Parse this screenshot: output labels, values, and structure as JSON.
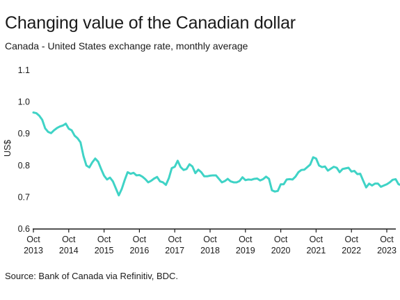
{
  "title": "Changing value of the Canadian dollar",
  "subtitle": "Canada - United States exchange rate, monthly average",
  "source": "Source: Bank of Canada via Refinitiv, BDC.",
  "chart_data": {
    "type": "line",
    "ylabel": "US$",
    "xlabel": "",
    "ylim": [
      0.6,
      1.1
    ],
    "yticks": [
      "0.6",
      "0.7",
      "0.8",
      "0.9",
      "1.0",
      "1.1"
    ],
    "xticks": [
      {
        "month": "Oct",
        "year": "2013"
      },
      {
        "month": "Oct",
        "year": "2014"
      },
      {
        "month": "Oct",
        "year": "2015"
      },
      {
        "month": "Oct",
        "year": "2016"
      },
      {
        "month": "Oct",
        "year": "2017"
      },
      {
        "month": "Oct",
        "year": "2018"
      },
      {
        "month": "Oct",
        "year": "2019"
      },
      {
        "month": "Oct",
        "year": "2020"
      },
      {
        "month": "Oct",
        "year": "2021"
      },
      {
        "month": "Oct",
        "year": "2022"
      },
      {
        "month": "Oct",
        "year": "2023"
      }
    ],
    "grid": false,
    "line_color": "#3fd3c6",
    "series": [
      {
        "values": [
          0.967,
          0.965,
          0.957,
          0.944,
          0.917,
          0.906,
          0.902,
          0.911,
          0.918,
          0.923,
          0.926,
          0.932,
          0.916,
          0.911,
          0.894,
          0.886,
          0.873,
          0.83,
          0.8,
          0.794,
          0.81,
          0.822,
          0.812,
          0.789,
          0.768,
          0.756,
          0.762,
          0.75,
          0.728,
          0.706,
          0.726,
          0.754,
          0.779,
          0.774,
          0.777,
          0.769,
          0.77,
          0.765,
          0.757,
          0.747,
          0.752,
          0.759,
          0.764,
          0.75,
          0.747,
          0.739,
          0.76,
          0.792,
          0.796,
          0.815,
          0.795,
          0.786,
          0.789,
          0.804,
          0.797,
          0.776,
          0.787,
          0.779,
          0.766,
          0.766,
          0.768,
          0.769,
          0.769,
          0.758,
          0.747,
          0.751,
          0.758,
          0.75,
          0.747,
          0.747,
          0.751,
          0.763,
          0.754,
          0.756,
          0.755,
          0.758,
          0.759,
          0.753,
          0.757,
          0.765,
          0.758,
          0.722,
          0.718,
          0.72,
          0.741,
          0.741,
          0.756,
          0.757,
          0.756,
          0.765,
          0.779,
          0.786,
          0.787,
          0.795,
          0.803,
          0.826,
          0.822,
          0.8,
          0.795,
          0.797,
          0.784,
          0.79,
          0.796,
          0.793,
          0.779,
          0.789,
          0.791,
          0.793,
          0.781,
          0.783,
          0.773,
          0.774,
          0.752,
          0.731,
          0.743,
          0.737,
          0.743,
          0.743,
          0.733,
          0.737,
          0.741,
          0.747,
          0.755,
          0.757,
          0.741,
          0.738,
          0.731
        ]
      }
    ]
  }
}
